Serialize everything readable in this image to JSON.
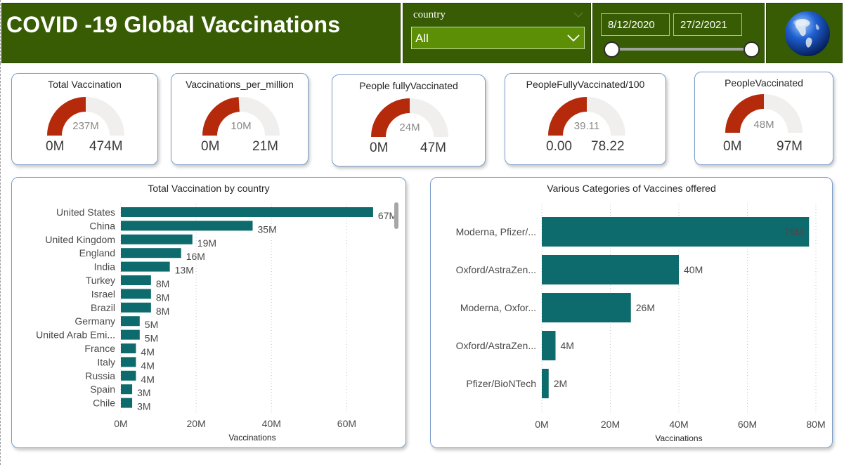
{
  "header": {
    "title": "COVID -19 Global Vaccinations",
    "country_slicer": {
      "label": "country",
      "selected": "All"
    },
    "date_range": {
      "start": "8/12/2020",
      "end": "27/2/2021",
      "slider_start_fraction": 0.0,
      "slider_end_fraction": 1.0
    },
    "logo_icon": "globe-icon"
  },
  "kpis": [
    {
      "title": "Total Vaccination",
      "value": "237M",
      "min": "0M",
      "max": "474M",
      "fill_fraction": 0.5
    },
    {
      "title": "Vaccinations_per_million",
      "value": "10M",
      "min": "0M",
      "max": "21M",
      "fill_fraction": 0.48
    },
    {
      "title": "People fullyVaccinated",
      "value": "24M",
      "min": "0M",
      "max": "47M",
      "fill_fraction": 0.5
    },
    {
      "title": "PeopleFullyVaccinated/100",
      "value": "39.11",
      "min": "0.00",
      "max": "78.22",
      "fill_fraction": 0.5
    },
    {
      "title": "PeopleVaccinated",
      "value": "48M",
      "min": "0M",
      "max": "97M",
      "fill_fraction": 0.5
    }
  ],
  "colors": {
    "bar": "#0d6b6e",
    "gauge_fill": "#b62a0c",
    "gauge_track": "#f0efee",
    "header_bg": "#375c04",
    "slicer_bg": "#5c8f05"
  },
  "chart_data": [
    {
      "type": "bar",
      "orientation": "horizontal",
      "title": "Total Vaccination by country",
      "xlabel": "Vaccinations",
      "ylabel": "",
      "xlim": [
        0,
        70
      ],
      "x_ticks": [
        "0M",
        "20M",
        "40M",
        "60M"
      ],
      "x_tick_values": [
        0,
        20,
        40,
        60
      ],
      "categories": [
        "United States",
        "China",
        "United Kingdom",
        "England",
        "India",
        "Turkey",
        "Israel",
        "Brazil",
        "Germany",
        "United Arab Emi...",
        "France",
        "Italy",
        "Russia",
        "Spain",
        "Chile"
      ],
      "values": [
        67,
        35,
        19,
        16,
        13,
        8,
        8,
        8,
        5,
        5,
        4,
        4,
        4,
        3,
        3
      ],
      "value_labels": [
        "67M",
        "35M",
        "19M",
        "16M",
        "13M",
        "8M",
        "8M",
        "8M",
        "5M",
        "5M",
        "4M",
        "4M",
        "4M",
        "3M",
        "3M"
      ],
      "grid": true
    },
    {
      "type": "bar",
      "orientation": "horizontal",
      "title": "Various Categories of Vaccines offered",
      "xlabel": "Vaccinations",
      "ylabel": "",
      "xlim": [
        0,
        80
      ],
      "x_ticks": [
        "0M",
        "20M",
        "40M",
        "60M",
        "80M"
      ],
      "x_tick_values": [
        0,
        20,
        40,
        60,
        80
      ],
      "categories": [
        "Moderna, Pfizer/...",
        "Oxford/AstraZen...",
        "Moderna, Oxfor...",
        "Oxford/AstraZen...",
        "Pfizer/BioNTech"
      ],
      "values": [
        78,
        40,
        26,
        4,
        2
      ],
      "value_labels": [
        "78M",
        "40M",
        "26M",
        "4M",
        "2M"
      ],
      "grid": true
    }
  ]
}
